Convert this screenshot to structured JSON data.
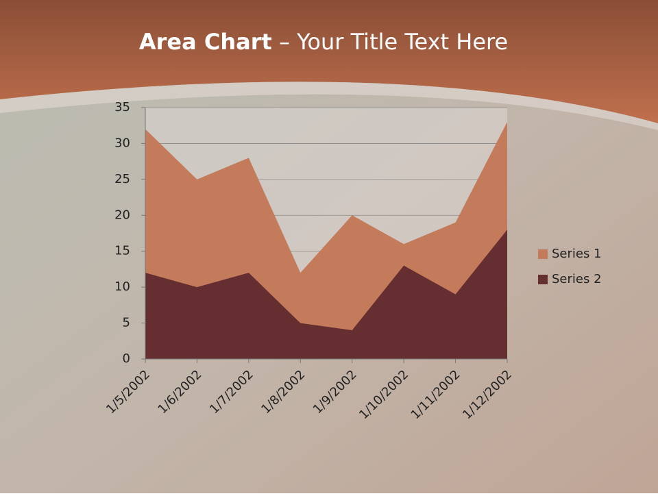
{
  "chart_data": {
    "type": "area",
    "title": [
      "Area Chart",
      " – Your Title Text Here"
    ],
    "categories": [
      "1/5/2002",
      "1/6/2002",
      "1/7/2002",
      "1/8/2002",
      "1/9/2002",
      "1/10/2002",
      "1/11/2002",
      "1/12/2002"
    ],
    "series": [
      {
        "name": "Series 1",
        "color": "#c47b5b",
        "values": [
          32,
          25,
          28,
          12,
          20,
          16,
          19,
          33
        ]
      },
      {
        "name": "Series 2",
        "color": "#652e31",
        "values": [
          12,
          10,
          12,
          5,
          4,
          13,
          9,
          18
        ]
      }
    ],
    "ylim": [
      0,
      35
    ],
    "yticks": [
      0,
      5,
      10,
      15,
      20,
      25,
      30,
      35
    ],
    "grid": true,
    "legend": "right"
  }
}
